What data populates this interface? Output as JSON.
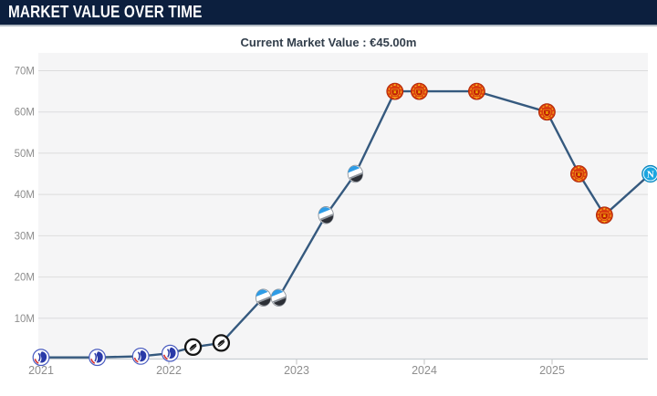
{
  "header": {
    "title": "MARKET VALUE OVER TIME",
    "subtitle": "Current Market Value : €45.00m"
  },
  "current_market_value": "€45.00m",
  "colors": {
    "header_bg": "#0c1f3e",
    "header_border": "#b2bac3",
    "title_text": "#ffffff",
    "subtitle_text": "#323e4b",
    "plot_bg": "#f5f5f6",
    "gridline": "#dcdcdd",
    "axis_line": "#c9ced3",
    "tick": "#c2c2c2",
    "axis_label": "#8e8e8e",
    "line": "#35597e",
    "copenhagen_blue": "#2a3aa8",
    "sturm_black": "#151515",
    "atalanta_azure": "#2e9ce6",
    "man_united_red": "#da3c0f",
    "napoli_azure": "#1ba5e0"
  },
  "chart_data": {
    "type": "line",
    "title": "Market Value Over Time",
    "xlabel": "",
    "ylabel": "",
    "grid": "horizontal",
    "legend": "none",
    "x_axis": {
      "tick_labels": [
        "2021",
        "2022",
        "2023",
        "2024",
        "2025"
      ]
    },
    "y_axis": {
      "tick_values_m": [
        10,
        20,
        30,
        40,
        50,
        60,
        70
      ],
      "tick_labels": [
        "10M",
        "20M",
        "30M",
        "40M",
        "50M",
        "60M",
        "70M"
      ],
      "ylim_m": [
        0,
        70
      ],
      "unit": "EUR millions"
    },
    "series": [
      {
        "name": "Market value (EUR millions)",
        "points": [
          {
            "x_year": 2021.0,
            "value_m": 0.5,
            "icon": "fc-copenhagen-crest-icon"
          },
          {
            "x_year": 2021.44,
            "value_m": 0.5,
            "icon": "fc-copenhagen-crest-icon"
          },
          {
            "x_year": 2021.78,
            "value_m": 0.8,
            "icon": "fc-copenhagen-crest-icon"
          },
          {
            "x_year": 2022.01,
            "value_m": 1.5,
            "icon": "fc-copenhagen-crest-icon"
          },
          {
            "x_year": 2022.19,
            "value_m": 3.0,
            "icon": "sturm-graz-crest-icon"
          },
          {
            "x_year": 2022.41,
            "value_m": 4.0,
            "icon": "sturm-graz-crest-icon"
          },
          {
            "x_year": 2022.74,
            "value_m": 15.0,
            "icon": "atalanta-crest-icon"
          },
          {
            "x_year": 2022.86,
            "value_m": 15.0,
            "icon": "atalanta-crest-icon"
          },
          {
            "x_year": 2023.23,
            "value_m": 35.0,
            "icon": "atalanta-crest-icon"
          },
          {
            "x_year": 2023.46,
            "value_m": 45.0,
            "icon": "atalanta-crest-icon"
          },
          {
            "x_year": 2023.77,
            "value_m": 65.0,
            "icon": "man-united-crest-icon"
          },
          {
            "x_year": 2023.96,
            "value_m": 65.0,
            "icon": "man-united-crest-icon"
          },
          {
            "x_year": 2024.41,
            "value_m": 65.0,
            "icon": "man-united-crest-icon"
          },
          {
            "x_year": 2024.96,
            "value_m": 60.0,
            "icon": "man-united-crest-icon"
          },
          {
            "x_year": 2025.21,
            "value_m": 45.0,
            "icon": "man-united-crest-icon"
          },
          {
            "x_year": 2025.41,
            "value_m": 35.0,
            "icon": "man-united-crest-icon"
          },
          {
            "x_year": 2025.77,
            "value_m": 45.0,
            "icon": "napoli-crest-icon"
          }
        ]
      }
    ]
  }
}
